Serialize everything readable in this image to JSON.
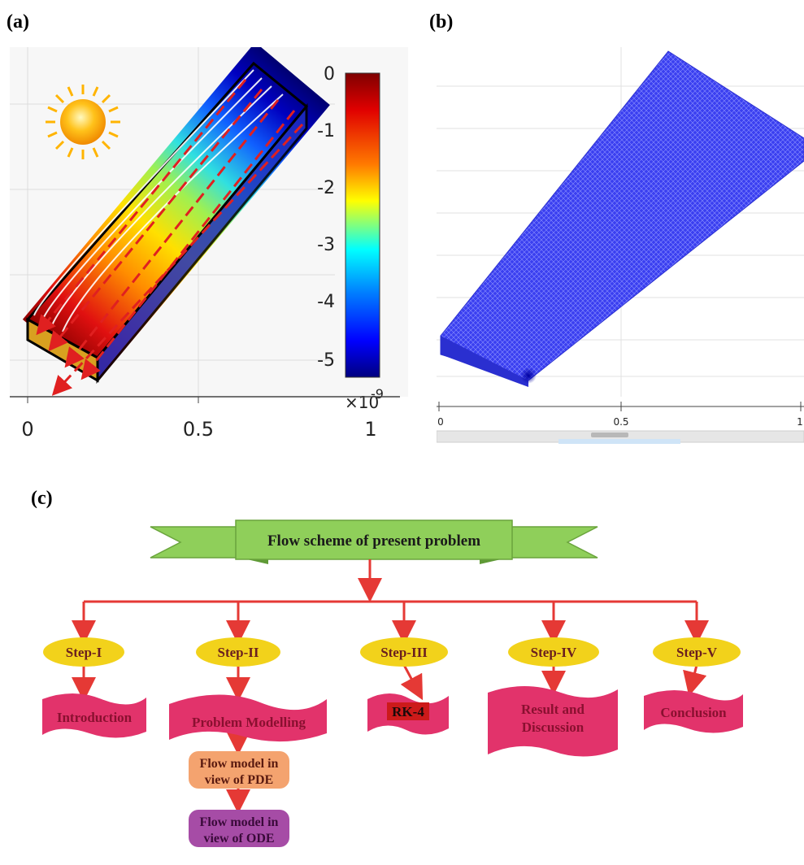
{
  "panel_a": {
    "label": "(a)",
    "x_ticks": [
      "0",
      "0.5",
      "1"
    ],
    "colorbar_ticks": [
      "0",
      "-1",
      "-2",
      "-3",
      "-4",
      "-5"
    ],
    "colorbar_multiplier": "×10",
    "colorbar_exponent": "-9"
  },
  "panel_b": {
    "label": "(b)",
    "x_ticks": [
      "0",
      "0.5",
      "1"
    ]
  },
  "panel_c": {
    "label": "(c)",
    "banner": "Flow scheme of present problem",
    "steps": [
      {
        "step": "Step-I",
        "result_lines": [
          "Introduction"
        ]
      },
      {
        "step": "Step-II",
        "result_lines": [
          "Problem Modelling"
        ]
      },
      {
        "step": "Step-III",
        "result_lines": [
          "RK-4"
        ]
      },
      {
        "step": "Step-IV",
        "result_lines": [
          "Result and",
          "Discussion"
        ]
      },
      {
        "step": "Step-V",
        "result_lines": [
          "Conclusion"
        ]
      }
    ],
    "sub_boxes": [
      {
        "lines": [
          "Flow model in",
          "view of PDE"
        ],
        "color": "#f4a36f"
      },
      {
        "lines": [
          "Flow model in",
          "view of ODE"
        ],
        "color": "#a64ca6"
      }
    ],
    "colors": {
      "banner": "#8fcf5a",
      "step_ellipse": "#f2d21b",
      "result_wave": "#e2336b",
      "arrow": "#e53935"
    }
  }
}
